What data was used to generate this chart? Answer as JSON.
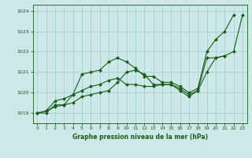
{
  "title": "Graphe pression niveau de la mer (hPa)",
  "bg_color": "#cce8e8",
  "grid_color": "#a8d0d0",
  "line_color": "#1a5c1a",
  "xlim": [
    -0.5,
    23.5
  ],
  "ylim": [
    1018.5,
    1024.3
  ],
  "yticks": [
    1019,
    1020,
    1021,
    1022,
    1023,
    1024
  ],
  "xticks": [
    0,
    1,
    2,
    3,
    4,
    5,
    6,
    7,
    8,
    9,
    10,
    11,
    12,
    13,
    14,
    15,
    16,
    17,
    18,
    19,
    20,
    21,
    22,
    23
  ],
  "series": [
    [
      1019.0,
      1019.1,
      1019.6,
      1019.7,
      1019.9,
      1020.9,
      1021.0,
      1021.1,
      1021.5,
      1021.7,
      1021.5,
      1021.2,
      1020.8,
      1020.8,
      1020.5,
      1020.5,
      1020.3,
      1020.0,
      1020.2,
      1022.0,
      1022.6,
      1023.0,
      1023.8,
      null
    ],
    [
      1019.0,
      1019.1,
      1019.3,
      1019.4,
      1019.5,
      1019.8,
      1019.9,
      1020.0,
      1020.1,
      1020.5,
      1021.0,
      1021.1,
      1020.9,
      1020.4,
      1020.4,
      1020.4,
      1020.2,
      1019.9,
      1020.1,
      1021.0,
      1021.7,
      1021.8,
      null,
      null
    ],
    [
      1019.0,
      1019.0,
      1019.4,
      1019.4,
      1019.9,
      1020.1,
      1020.3,
      1020.4,
      1020.6,
      1020.7,
      1020.4,
      1020.4,
      1020.3,
      1020.3,
      1020.4,
      1020.4,
      1020.1,
      1019.8,
      1020.1,
      1021.7,
      1021.7,
      1021.8,
      1022.0,
      1023.8
    ]
  ]
}
